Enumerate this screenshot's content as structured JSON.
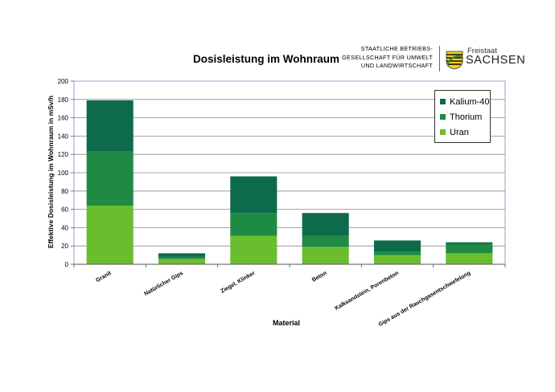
{
  "header": {
    "title": "Dosisleistung im Wohnraum",
    "org_lines": [
      "STAATLICHE BETRIEBS-",
      "GESELLSCHAFT FÜR UMWELT",
      "UND LANDWIRTSCHAFT"
    ],
    "logo_small": "Freistaat",
    "logo_big": "SACHSEN"
  },
  "chart_data": {
    "type": "bar",
    "stacked": true,
    "categories": [
      "Granit",
      "Natürlicher Gips",
      "Ziegel, Klinker",
      "Beton",
      "Kalksandstein, Porenbeton",
      "Gips aus der Rauchgasentschwefelung"
    ],
    "series": [
      {
        "name": "Uran",
        "color": "#6abd2e",
        "values": [
          64,
          6,
          31,
          19,
          10,
          12
        ]
      },
      {
        "name": "Thorium",
        "color": "#1e8a44",
        "values": [
          59,
          2,
          25,
          12,
          4,
          10
        ]
      },
      {
        "name": "Kalium-40",
        "color": "#0d6a4a",
        "values": [
          56,
          4,
          40,
          25,
          12,
          2
        ]
      }
    ],
    "legend_order": [
      "Kalium-40",
      "Thorium",
      "Uran"
    ],
    "xlabel": "Material",
    "ylabel": "Effektive Dosisleistung im Wohnraum in mSv/h",
    "ylim": [
      0,
      200
    ],
    "yticks": [
      0,
      20,
      40,
      60,
      80,
      100,
      120,
      140,
      160,
      180,
      200
    ],
    "grid": true,
    "legend_position": "top-right"
  }
}
